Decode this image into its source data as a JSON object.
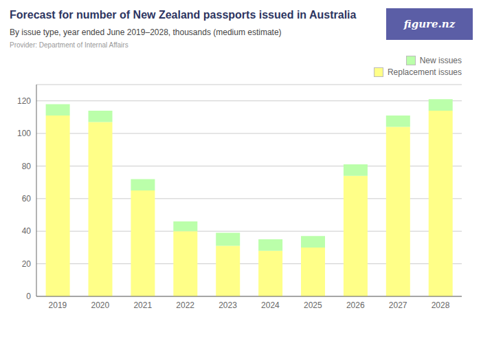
{
  "chart_data": {
    "type": "bar",
    "title": "Forecast for number of New Zealand passports issued in Australia",
    "subtitle": "By issue type, year ended June 2019–2028, thousands (medium estimate)",
    "annotations": [
      "Provider: Department of Internal Affairs",
      "figure.nz"
    ],
    "categories": [
      "2019",
      "2020",
      "2021",
      "2022",
      "2023",
      "2024",
      "2025",
      "2026",
      "2027",
      "2028"
    ],
    "series": [
      {
        "name": "Replacement issues",
        "color": "#FFFF88",
        "values": [
          111,
          107,
          65,
          40,
          31,
          28,
          30,
          74,
          104,
          114
        ]
      },
      {
        "name": "New issues",
        "color": "#BBFFAA",
        "values": [
          7,
          7,
          7,
          6,
          8,
          7,
          7,
          7,
          7,
          7
        ]
      }
    ],
    "stacked": true,
    "ylim": [
      0,
      130
    ],
    "yticks": [
      0,
      20,
      40,
      60,
      80,
      100,
      120
    ],
    "grid": true,
    "legend": "upper right"
  }
}
